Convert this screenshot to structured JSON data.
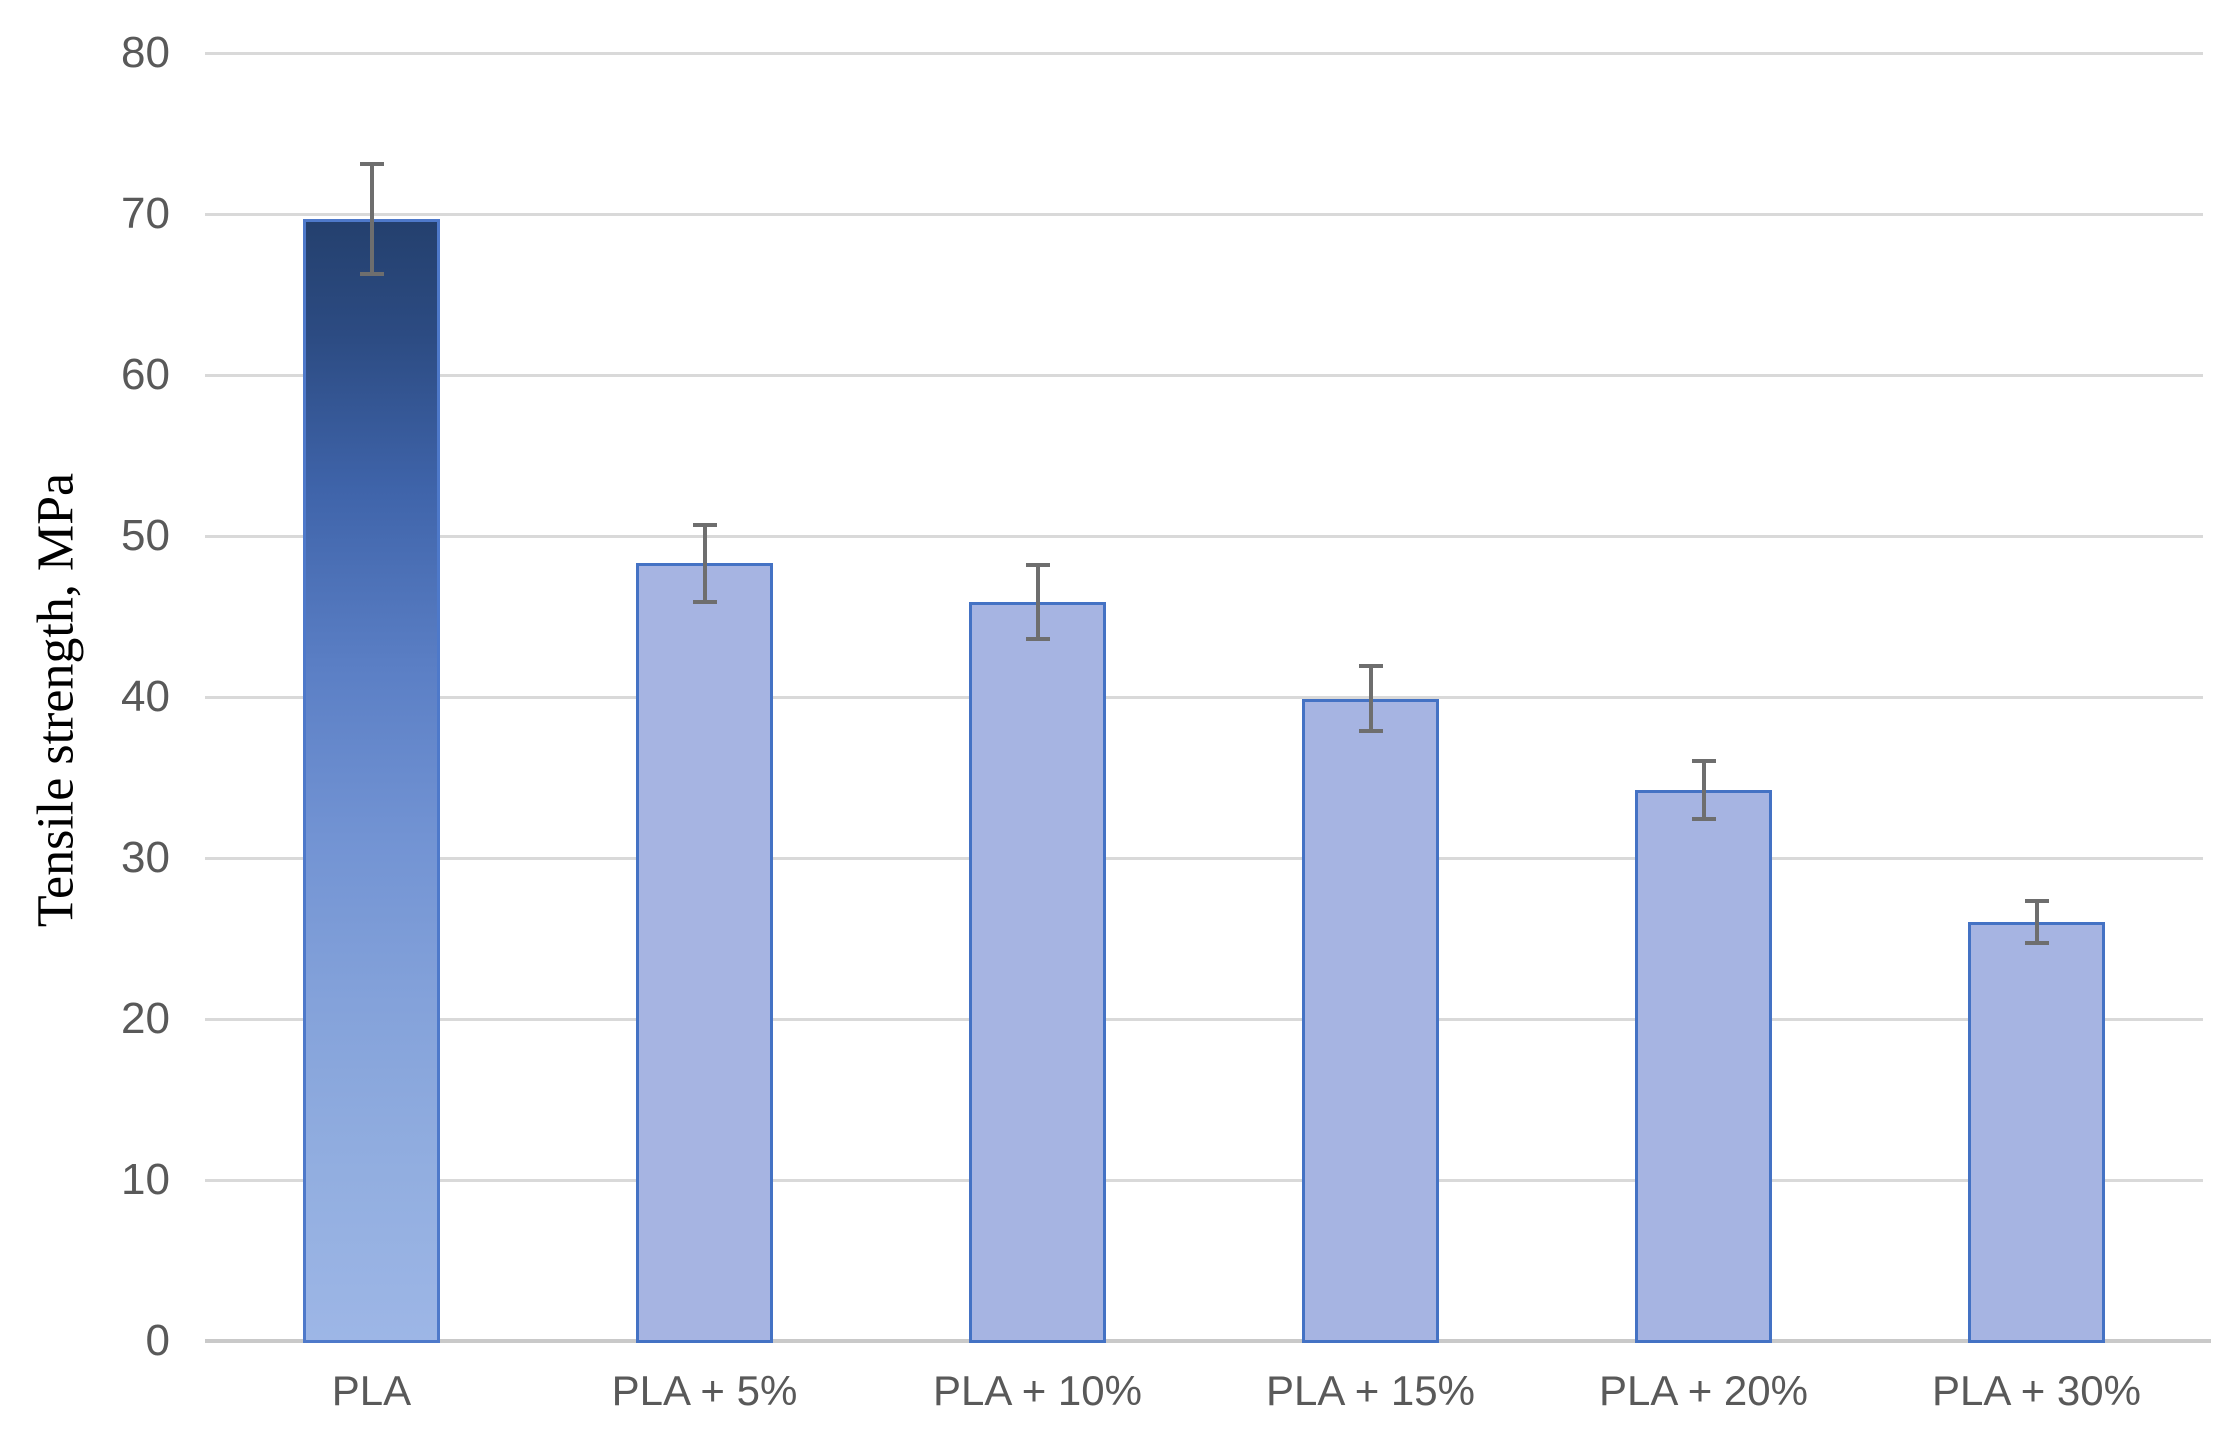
{
  "chart_data": {
    "type": "bar",
    "title": "",
    "categories": [
      "PLA",
      "PLA + 5%",
      "PLA + 10%",
      "PLA + 15%",
      "PLA + 20%",
      "PLA + 30%"
    ],
    "values": [
      69.7,
      48.3,
      45.9,
      39.9,
      34.2,
      26.0
    ],
    "errors": [
      3.4,
      2.4,
      2.3,
      2.0,
      1.8,
      1.3
    ],
    "xlabel": "",
    "ylabel": "Tensile strength, MPa",
    "ylim": [
      0,
      80
    ],
    "yticks": [
      0,
      10,
      20,
      30,
      40,
      50,
      60,
      70,
      80
    ],
    "grid": true,
    "legend": false,
    "colors": {
      "bar_fill": "#a6b4e2",
      "bar_border": "#4472c4",
      "first_bar_gradient_top": "#24406e",
      "first_bar_gradient_mid": "#5b7fc5",
      "first_bar_gradient_bottom": "#9db6e6",
      "first_bar_border": "#4e79ca",
      "gridline": "#d9d9d9",
      "axis_line": "#c9c9c9",
      "error_bar": "#6e6e6e",
      "tick_label": "#595959",
      "axis_title": "#000000",
      "background": "#ffffff"
    }
  }
}
